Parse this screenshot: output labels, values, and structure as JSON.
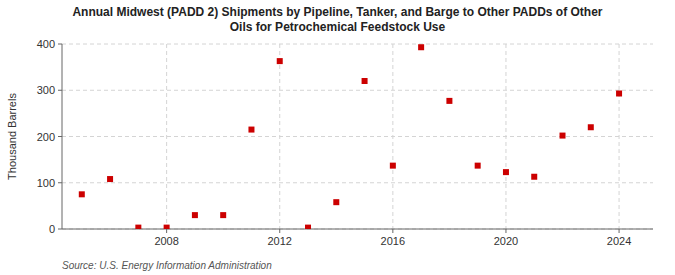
{
  "chart_data": {
    "type": "scatter",
    "title": "Annual Midwest (PADD 2) Shipments by Pipeline, Tanker, and Barge to Other PADDs of Other\nOils for Petrochemical Feedstock Use",
    "y_label": "Thousand Barrels",
    "source": "Source: U.S. Energy Information Administration",
    "x": [
      2005,
      2006,
      2007,
      2008,
      2009,
      2010,
      2011,
      2012,
      2013,
      2014,
      2015,
      2016,
      2017,
      2018,
      2019,
      2020,
      2021,
      2022,
      2023,
      2024
    ],
    "values": [
      75,
      108,
      3,
      3,
      30,
      30,
      215,
      363,
      3,
      58,
      320,
      137,
      393,
      277,
      137,
      123,
      113,
      202,
      220,
      293
    ],
    "color": "#cc0000",
    "marker": "square",
    "xlim": [
      2004.3,
      2025.2
    ],
    "xticks": [
      2008,
      2012,
      2016,
      2020,
      2024
    ],
    "ylim": [
      0,
      400
    ],
    "yticks": [
      0,
      100,
      200,
      300,
      400
    ],
    "grid": true
  }
}
